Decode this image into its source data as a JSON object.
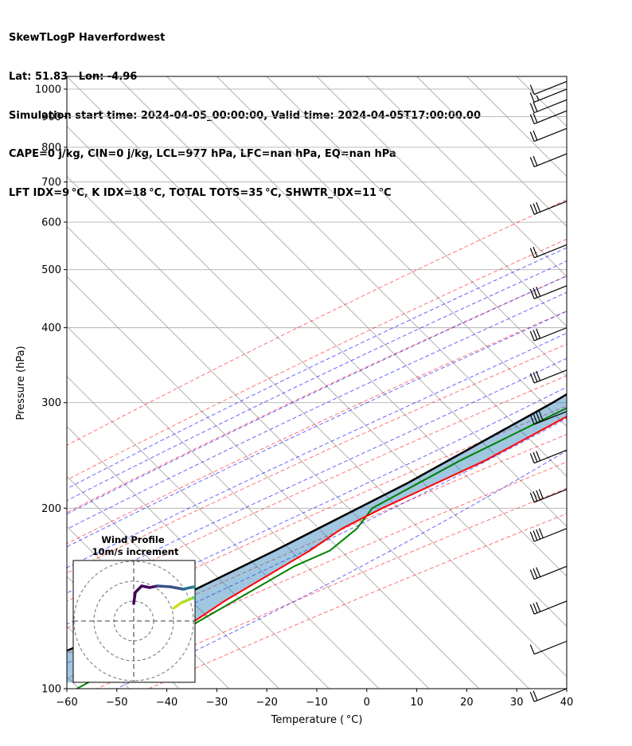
{
  "header": {
    "line1": "SkewTLogP Haverfordwest",
    "line2": "Lat: 51.83   Lon: -4.96",
    "line3": "Simulation start time: 2024-04-05_00:00:00, Valid time: 2024-04-05T17:00:00.00",
    "line4": "CAPE=0 j/kg, CIN=0 j/kg, LCL=977 hPa, LFC=nan hPa, EQ=nan hPa",
    "line5": "LFT IDX=9 °C, K IDX=18 °C, TOTAL TOTS=35 °C, SHWTR_IDX=11 °C"
  },
  "chart_data": {
    "type": "line",
    "title": "SkewTLogP Haverfordwest",
    "xlabel": "Temperature ( °C)",
    "ylabel": "Pressure (hPa)",
    "xlim": [
      -60,
      40
    ],
    "ylim": [
      1050,
      100
    ],
    "yscale": "log",
    "x_ticks": [
      -60,
      -50,
      -40,
      -30,
      -20,
      -10,
      0,
      10,
      20,
      30,
      40
    ],
    "y_ticks": [
      1000,
      900,
      800,
      700,
      600,
      500,
      400,
      300,
      200,
      100
    ],
    "series": [
      {
        "name": "",
        "color": "#ff0000",
        "points": [
          [
            12,
            990
          ],
          [
            12,
            950
          ],
          [
            12,
            900
          ],
          [
            11,
            850
          ],
          [
            9,
            800
          ],
          [
            8,
            750
          ],
          [
            8,
            700
          ],
          [
            7,
            650
          ],
          [
            6,
            600
          ],
          [
            3,
            500
          ],
          [
            -2,
            420
          ],
          [
            -7,
            350
          ],
          [
            -12,
            300
          ],
          [
            -22,
            240
          ],
          [
            -33,
            200
          ],
          [
            -37,
            185
          ],
          [
            -39,
            170
          ],
          [
            -46,
            140
          ],
          [
            -50,
            120
          ],
          [
            -56,
            103
          ]
        ]
      },
      {
        "name": "",
        "color": "#008000",
        "points": [
          [
            12,
            990
          ],
          [
            12,
            950
          ],
          [
            7,
            910
          ],
          [
            -1,
            880
          ],
          [
            -1,
            850
          ],
          [
            2,
            800
          ],
          [
            6,
            750
          ],
          [
            7,
            700
          ],
          [
            6,
            650
          ],
          [
            5,
            600
          ],
          [
            1,
            500
          ],
          [
            -6,
            400
          ],
          [
            -10,
            340
          ],
          [
            -15,
            300
          ],
          [
            -27,
            240
          ],
          [
            -35,
            200
          ],
          [
            -34,
            185
          ],
          [
            -35,
            170
          ],
          [
            -39,
            160
          ],
          [
            -50,
            120
          ],
          [
            -58,
            100
          ]
        ]
      },
      {
        "name": "",
        "color": "#000000",
        "points": [
          [
            12,
            990
          ],
          [
            11,
            950
          ],
          [
            8,
            850
          ],
          [
            5,
            700
          ],
          [
            1,
            600
          ],
          [
            -4,
            500
          ],
          [
            -10,
            400
          ],
          [
            -20,
            300
          ],
          [
            -33,
            220
          ],
          [
            -46,
            170
          ],
          [
            -65,
            120
          ],
          [
            -78,
            100
          ]
        ]
      }
    ],
    "dry_adiabat_thetas_c": [
      -30,
      -10,
      10,
      30,
      50,
      70,
      90,
      110,
      130,
      150,
      170
    ],
    "moist_adiabat_starts_c": [
      -10,
      -5,
      0,
      5,
      10,
      15,
      20,
      25,
      30,
      35
    ],
    "mixing_ratio_lines": [
      0.4,
      1,
      2,
      3,
      5,
      8,
      12,
      16,
      20
    ],
    "wind_barbs": [
      {
        "p": 100,
        "speed_kt": 20,
        "dir": 250
      },
      {
        "p": 120,
        "speed_kt": 10,
        "dir": 250
      },
      {
        "p": 140,
        "speed_kt": 30,
        "dir": 250
      },
      {
        "p": 160,
        "speed_kt": 30,
        "dir": 250
      },
      {
        "p": 185,
        "speed_kt": 40,
        "dir": 250
      },
      {
        "p": 215,
        "speed_kt": 40,
        "dir": 250
      },
      {
        "p": 250,
        "speed_kt": 30,
        "dir": 250
      },
      {
        "p": 290,
        "speed_kt": 40,
        "dir": 250
      },
      {
        "p": 340,
        "speed_kt": 30,
        "dir": 250
      },
      {
        "p": 400,
        "speed_kt": 30,
        "dir": 250
      },
      {
        "p": 470,
        "speed_kt": 30,
        "dir": 245
      },
      {
        "p": 550,
        "speed_kt": 20,
        "dir": 240
      },
      {
        "p": 650,
        "speed_kt": 30,
        "dir": 235
      },
      {
        "p": 780,
        "speed_kt": 20,
        "dir": 220
      },
      {
        "p": 860,
        "speed_kt": 20,
        "dir": 215
      },
      {
        "p": 920,
        "speed_kt": 20,
        "dir": 210
      },
      {
        "p": 960,
        "speed_kt": 20,
        "dir": 205
      },
      {
        "p": 1000,
        "speed_kt": 15,
        "dir": 200
      },
      {
        "p": 1030,
        "speed_kt": 10,
        "dir": 195
      }
    ],
    "inset": {
      "title_line1": "Wind Profile",
      "title_line2": "10m/s increment"
    }
  }
}
